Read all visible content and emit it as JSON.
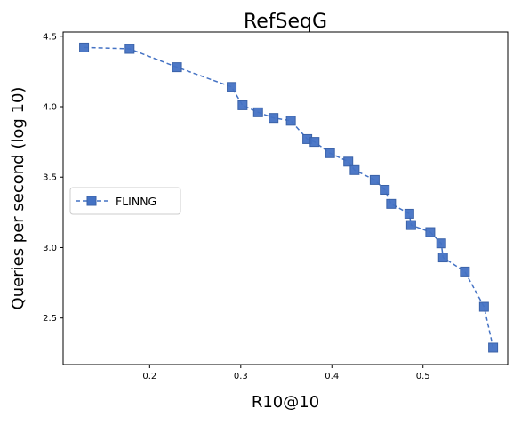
{
  "chart_data": {
    "type": "line",
    "title": "RefSeqG",
    "xlabel": "R10@10",
    "ylabel": "Queries per second (log 10)",
    "xlim": [
      0.105,
      0.593
    ],
    "ylim": [
      2.17,
      4.53
    ],
    "xticks": [
      0.2,
      0.3,
      0.4,
      0.5
    ],
    "xtick_labels": [
      "0.2",
      "0.3",
      "0.4",
      "0.5"
    ],
    "yticks": [
      2.5,
      3.0,
      3.5,
      4.0,
      4.5
    ],
    "ytick_labels": [
      "2.5",
      "3.0",
      "3.5",
      "4.0",
      "4.5"
    ],
    "grid": false,
    "legend_position": "center-left",
    "series": [
      {
        "name": "FLINNG",
        "color": "#4472c4",
        "line_style": "dashed",
        "marker": "square",
        "x": [
          0.128,
          0.178,
          0.23,
          0.29,
          0.302,
          0.319,
          0.336,
          0.355,
          0.373,
          0.381,
          0.398,
          0.418,
          0.425,
          0.447,
          0.458,
          0.465,
          0.485,
          0.487,
          0.508,
          0.52,
          0.522,
          0.546,
          0.567,
          0.577
        ],
        "y": [
          4.42,
          4.41,
          4.28,
          4.14,
          4.01,
          3.96,
          3.92,
          3.9,
          3.77,
          3.75,
          3.67,
          3.61,
          3.55,
          3.48,
          3.41,
          3.31,
          3.24,
          3.16,
          3.11,
          3.03,
          2.93,
          2.83,
          2.58,
          2.29
        ]
      }
    ]
  }
}
